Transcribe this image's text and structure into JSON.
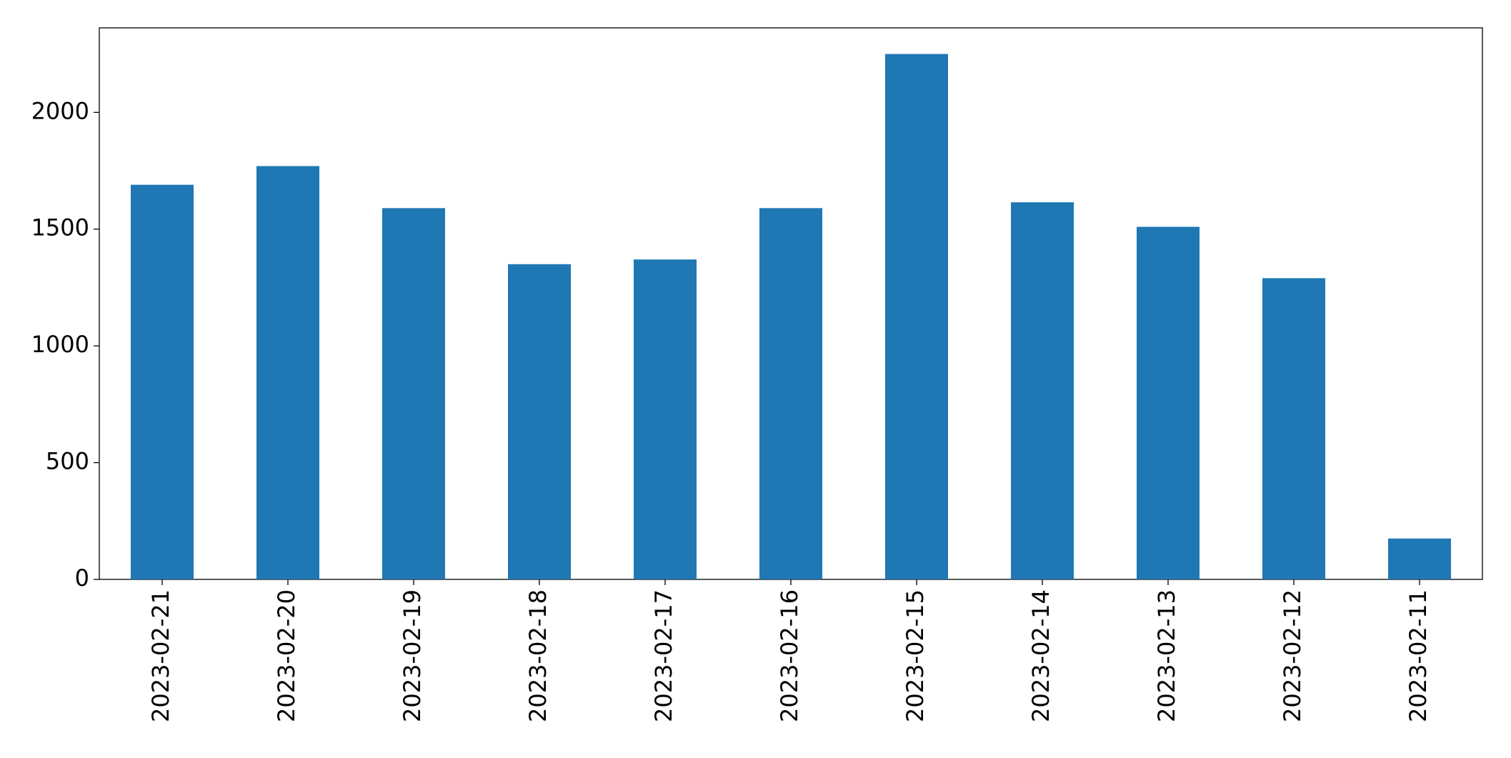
{
  "chart_data": {
    "type": "bar",
    "categories": [
      "2023-02-21",
      "2023-02-20",
      "2023-02-19",
      "2023-02-18",
      "2023-02-17",
      "2023-02-16",
      "2023-02-15",
      "2023-02-14",
      "2023-02-13",
      "2023-02-12",
      "2023-02-11"
    ],
    "values": [
      1690,
      1770,
      1590,
      1350,
      1370,
      1590,
      2250,
      1615,
      1510,
      1290,
      175
    ],
    "color": "#1f77b4",
    "ylim": [
      0,
      2362
    ],
    "yticks": [
      0,
      500,
      1000,
      1500,
      2000
    ],
    "grid": false
  }
}
